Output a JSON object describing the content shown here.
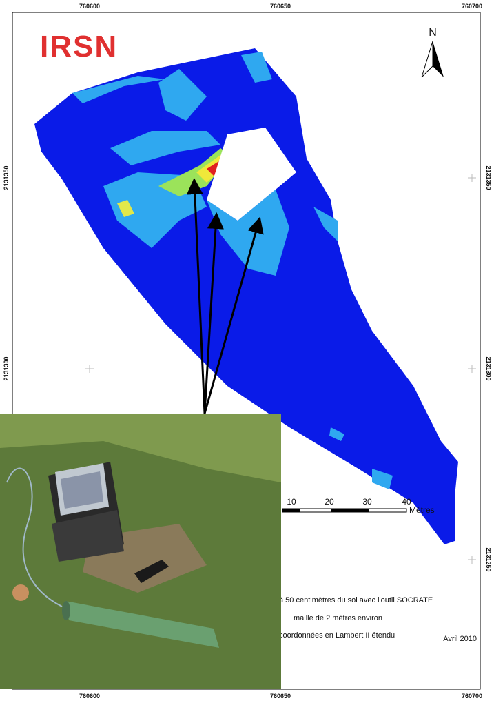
{
  "map": {
    "logo": "IRSN",
    "north": "N",
    "x_labels_top": [
      "760600",
      "760650",
      "760700"
    ],
    "x_labels_bottom": [
      "760600",
      "760650",
      "760700"
    ],
    "y_labels_left": [
      "2131350",
      "2131300"
    ],
    "y_labels_right": [
      "2131350",
      "2131300",
      "2131250"
    ],
    "scale": {
      "ticks": [
        10,
        20,
        30,
        40
      ],
      "unit": "Mètres"
    },
    "notes": [
      "à 50 centimètres du sol avec l'outil SOCRATE",
      "maille de 2 mètres environ",
      "coordonnées en Lambert II étendu"
    ],
    "date": "Avril 2010"
  }
}
